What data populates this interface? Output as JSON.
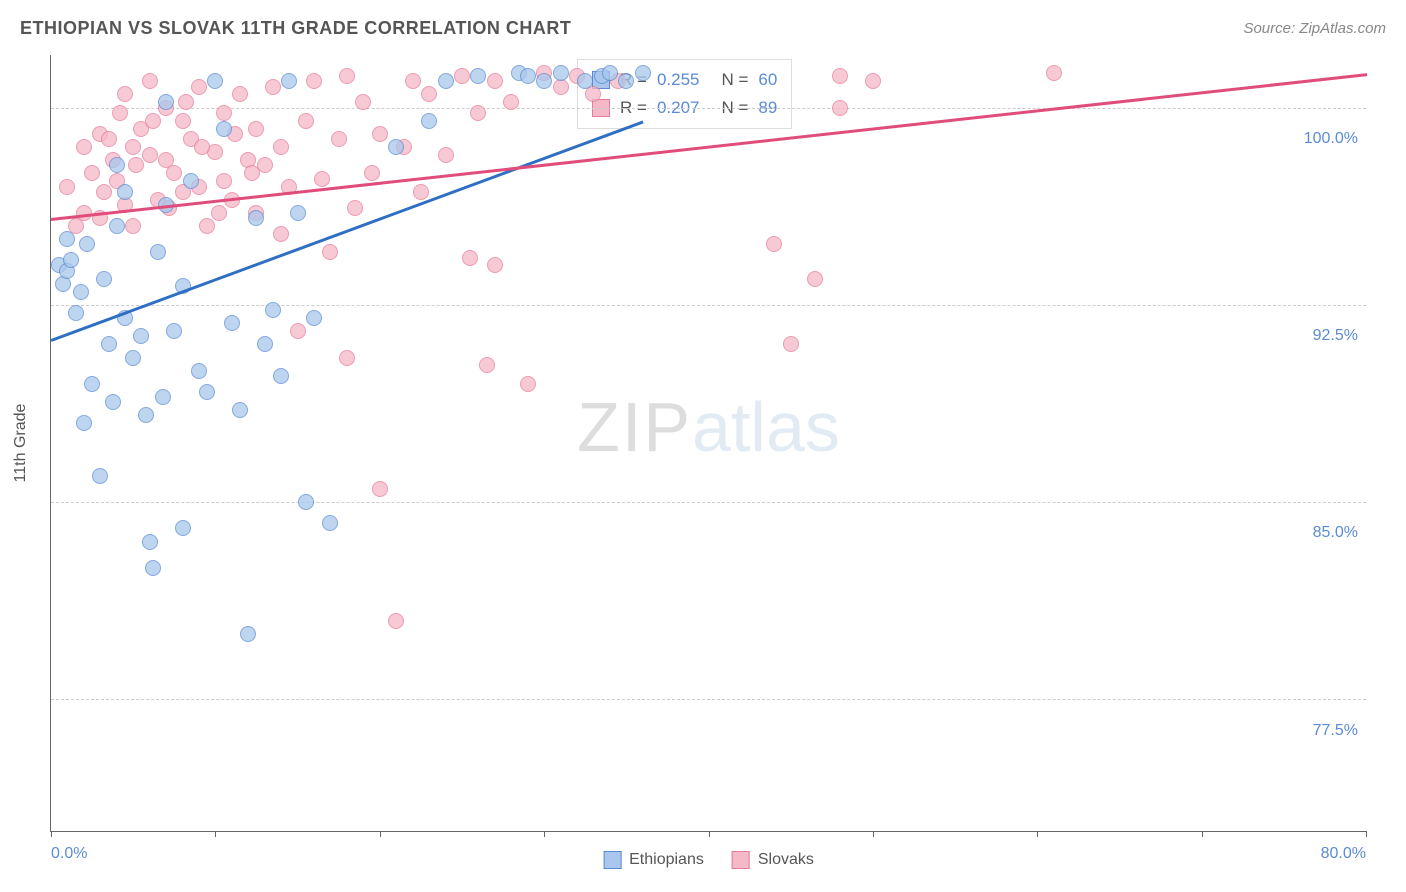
{
  "header": {
    "title": "ETHIOPIAN VS SLOVAK 11TH GRADE CORRELATION CHART",
    "source": "Source: ZipAtlas.com"
  },
  "chart": {
    "type": "scatter",
    "y_axis_title": "11th Grade",
    "background_color": "#ffffff",
    "grid_color": "#cccccc",
    "axis_color": "#666666",
    "label_color": "#5b8bd4",
    "title_color": "#555555",
    "title_fontsize": 18,
    "label_fontsize": 16,
    "xlim": [
      0,
      80
    ],
    "ylim": [
      72.5,
      102
    ],
    "x_ticks": [
      0,
      10,
      20,
      30,
      40,
      50,
      60,
      70,
      80
    ],
    "x_tick_labels": {
      "0": "0.0%",
      "80": "80.0%"
    },
    "y_ticks": [
      77.5,
      85.0,
      92.5,
      100.0
    ],
    "y_tick_labels": [
      "77.5%",
      "85.0%",
      "92.5%",
      "100.0%"
    ],
    "marker_radius": 8,
    "marker_opacity": 0.75,
    "watermark": {
      "zip": "ZIP",
      "atlas": "atlas"
    }
  },
  "series": {
    "ethiopians": {
      "label": "Ethiopians",
      "fill_color": "#a9c7ec",
      "stroke_color": "#5b8bd4",
      "line_color": "#2e6fc4",
      "R": "0.255",
      "N": "60",
      "trend": {
        "x1": 0,
        "y1": 91.2,
        "x2": 36,
        "y2": 99.5
      },
      "points": [
        [
          0.5,
          94.0
        ],
        [
          0.7,
          93.3
        ],
        [
          1.0,
          93.8
        ],
        [
          1.2,
          94.2
        ],
        [
          1.0,
          95.0
        ],
        [
          1.5,
          92.2
        ],
        [
          2.0,
          88.0
        ],
        [
          2.5,
          89.5
        ],
        [
          3.0,
          86.0
        ],
        [
          3.2,
          93.5
        ],
        [
          3.5,
          91.0
        ],
        [
          4.0,
          95.5
        ],
        [
          4.0,
          97.8
        ],
        [
          4.5,
          96.8
        ],
        [
          4.5,
          92.0
        ],
        [
          5.0,
          90.5
        ],
        [
          5.5,
          91.3
        ],
        [
          6.0,
          83.5
        ],
        [
          6.2,
          82.5
        ],
        [
          6.5,
          94.5
        ],
        [
          7.0,
          96.3
        ],
        [
          7.0,
          100.2
        ],
        [
          7.5,
          91.5
        ],
        [
          8.0,
          93.2
        ],
        [
          8.5,
          97.2
        ],
        [
          9.0,
          90.0
        ],
        [
          9.5,
          89.2
        ],
        [
          10.0,
          101.0
        ],
        [
          10.5,
          99.2
        ],
        [
          11.0,
          91.8
        ],
        [
          11.5,
          88.5
        ],
        [
          12.0,
          80.0
        ],
        [
          12.5,
          95.8
        ],
        [
          13.0,
          91.0
        ],
        [
          13.5,
          92.3
        ],
        [
          8.0,
          84.0
        ],
        [
          14.0,
          89.8
        ],
        [
          14.5,
          101.0
        ],
        [
          15.0,
          96.0
        ],
        [
          15.5,
          85.0
        ],
        [
          16.0,
          92.0
        ],
        [
          3.8,
          88.8
        ],
        [
          17.0,
          84.2
        ],
        [
          21.0,
          98.5
        ],
        [
          23.0,
          99.5
        ],
        [
          24.0,
          101.0
        ],
        [
          26.0,
          101.2
        ],
        [
          28.5,
          101.3
        ],
        [
          29.0,
          101.2
        ],
        [
          30.0,
          101.0
        ],
        [
          31.0,
          101.3
        ],
        [
          32.5,
          101.0
        ],
        [
          33.5,
          101.2
        ],
        [
          34.0,
          101.3
        ],
        [
          35.0,
          101.0
        ],
        [
          36.0,
          101.3
        ],
        [
          2.2,
          94.8
        ],
        [
          1.8,
          93.0
        ],
        [
          5.8,
          88.3
        ],
        [
          6.8,
          89.0
        ]
      ]
    },
    "slovaks": {
      "label": "Slovaks",
      "fill_color": "#f5b8c7",
      "stroke_color": "#e77a99",
      "line_color": "#e04d7a",
      "R": "0.207",
      "N": "89",
      "trend": {
        "x1": 0,
        "y1": 95.8,
        "x2": 80,
        "y2": 101.3
      },
      "points": [
        [
          1.0,
          97.0
        ],
        [
          1.5,
          95.5
        ],
        [
          2.0,
          98.5
        ],
        [
          2.0,
          96.0
        ],
        [
          2.5,
          97.5
        ],
        [
          3.0,
          99.0
        ],
        [
          3.0,
          95.8
        ],
        [
          3.5,
          98.8
        ],
        [
          3.8,
          98.0
        ],
        [
          4.0,
          97.2
        ],
        [
          4.5,
          100.5
        ],
        [
          4.5,
          96.3
        ],
        [
          5.0,
          98.5
        ],
        [
          5.0,
          95.5
        ],
        [
          5.5,
          99.2
        ],
        [
          6.0,
          101.0
        ],
        [
          6.0,
          98.2
        ],
        [
          6.5,
          96.5
        ],
        [
          7.0,
          98.0
        ],
        [
          7.0,
          100.0
        ],
        [
          7.5,
          97.5
        ],
        [
          8.0,
          99.5
        ],
        [
          8.0,
          96.8
        ],
        [
          8.5,
          98.8
        ],
        [
          9.0,
          97.0
        ],
        [
          9.0,
          100.8
        ],
        [
          9.5,
          95.5
        ],
        [
          10.0,
          98.3
        ],
        [
          10.5,
          99.8
        ],
        [
          10.5,
          97.2
        ],
        [
          11.0,
          96.5
        ],
        [
          11.5,
          100.5
        ],
        [
          12.0,
          98.0
        ],
        [
          12.5,
          99.2
        ],
        [
          12.5,
          96.0
        ],
        [
          13.0,
          97.8
        ],
        [
          13.5,
          100.8
        ],
        [
          14.0,
          95.2
        ],
        [
          14.0,
          98.5
        ],
        [
          14.5,
          97.0
        ],
        [
          15.0,
          91.5
        ],
        [
          15.5,
          99.5
        ],
        [
          16.0,
          101.0
        ],
        [
          16.5,
          97.3
        ],
        [
          17.0,
          94.5
        ],
        [
          17.5,
          98.8
        ],
        [
          18.0,
          90.5
        ],
        [
          18.0,
          101.2
        ],
        [
          18.5,
          96.2
        ],
        [
          19.0,
          100.2
        ],
        [
          19.5,
          97.5
        ],
        [
          20.0,
          85.5
        ],
        [
          20.0,
          99.0
        ],
        [
          21.0,
          80.5
        ],
        [
          21.5,
          98.5
        ],
        [
          22.0,
          101.0
        ],
        [
          22.5,
          96.8
        ],
        [
          23.0,
          100.5
        ],
        [
          24.0,
          98.2
        ],
        [
          25.0,
          101.2
        ],
        [
          25.5,
          94.3
        ],
        [
          26.0,
          99.8
        ],
        [
          26.5,
          90.2
        ],
        [
          27.0,
          94.0
        ],
        [
          27.0,
          101.0
        ],
        [
          28.0,
          100.2
        ],
        [
          29.0,
          89.5
        ],
        [
          30.0,
          101.3
        ],
        [
          31.0,
          100.8
        ],
        [
          32.0,
          101.2
        ],
        [
          33.0,
          100.5
        ],
        [
          34.5,
          101.0
        ],
        [
          44.0,
          94.8
        ],
        [
          48.0,
          100.0
        ],
        [
          45.0,
          91.0
        ],
        [
          48.0,
          101.2
        ],
        [
          50.0,
          101.0
        ],
        [
          61.0,
          101.3
        ],
        [
          3.2,
          96.8
        ],
        [
          4.2,
          99.8
        ],
        [
          5.2,
          97.8
        ],
        [
          6.2,
          99.5
        ],
        [
          7.2,
          96.2
        ],
        [
          8.2,
          100.2
        ],
        [
          9.2,
          98.5
        ],
        [
          10.2,
          96.0
        ],
        [
          11.2,
          99.0
        ],
        [
          12.2,
          97.5
        ],
        [
          46.5,
          93.5
        ]
      ]
    }
  },
  "legend_box": {
    "rows": [
      {
        "series": "ethiopians",
        "R_label": "R =",
        "N_label": "N ="
      },
      {
        "series": "slovaks",
        "R_label": "R =",
        "N_label": "N ="
      }
    ]
  }
}
